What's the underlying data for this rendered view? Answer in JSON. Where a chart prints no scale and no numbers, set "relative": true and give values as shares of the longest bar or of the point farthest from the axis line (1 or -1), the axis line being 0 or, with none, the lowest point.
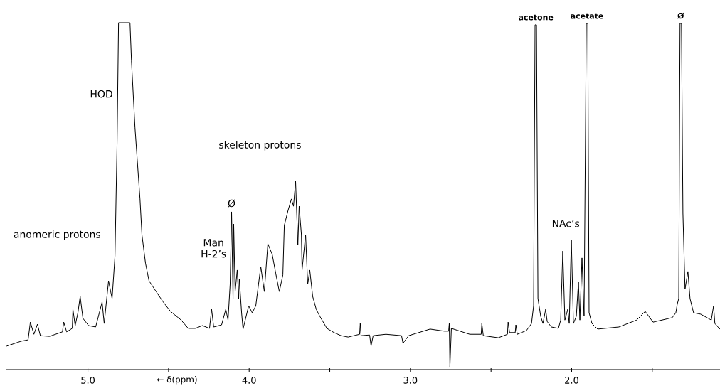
{
  "chart_data": {
    "type": "line",
    "relative": true,
    "xlabel": "← δ(ppm)",
    "xlim": [
      5.51,
      1.08
    ],
    "xticks": [
      {
        "value": 5.0,
        "label": "5.0"
      },
      {
        "value": 4.5,
        "label": null
      },
      {
        "value": 4.0,
        "label": "4.0"
      },
      {
        "value": 3.5,
        "label": null
      },
      {
        "value": 3.0,
        "label": "3.0"
      },
      {
        "value": 2.5,
        "label": null
      },
      {
        "value": 2.0,
        "label": "2.0"
      },
      {
        "value": 1.5,
        "label": null
      }
    ],
    "annotations": [
      "HOD",
      "anomeric protons",
      "skeleton protons",
      {
        "text": "Ø",
        "x": 4.109,
        "y": 0.455
      },
      "Man H-2’s",
      {
        "text": "acetone",
        "x": 2.222,
        "y": 0.994
      },
      {
        "text": "acetate",
        "x": 1.905,
        "y": 0.998
      },
      "NAc’s",
      {
        "text": "Ø",
        "x": 1.324,
        "y": 0.998
      }
    ],
    "series": [
      {
        "color": "#000000",
        "x": [
          5.503,
          5.415,
          5.371,
          5.357,
          5.335,
          5.313,
          5.295,
          5.238,
          5.158,
          5.15,
          5.132,
          5.097,
          5.093,
          5.079,
          5.062,
          5.048,
          5.031,
          4.996,
          4.952,
          4.912,
          4.899,
          4.872,
          4.85,
          4.832,
          4.819,
          4.81,
          4.739,
          4.73,
          4.708,
          4.677,
          4.665,
          4.643,
          4.621,
          4.577,
          4.533,
          4.488,
          4.422,
          4.378,
          4.334,
          4.29,
          4.246,
          4.233,
          4.22,
          4.171,
          4.145,
          4.131,
          4.118,
          4.109,
          4.1,
          4.096,
          4.087,
          4.074,
          4.065,
          4.061,
          4.047,
          4.038,
          4.003,
          3.981,
          3.959,
          3.928,
          3.906,
          3.884,
          3.857,
          3.835,
          3.813,
          3.791,
          3.782,
          3.76,
          3.738,
          3.725,
          3.712,
          3.698,
          3.69,
          3.676,
          3.672,
          3.65,
          3.637,
          3.624,
          3.606,
          3.584,
          3.562,
          3.518,
          3.474,
          3.43,
          3.386,
          3.315,
          3.311,
          3.306,
          3.253,
          3.244,
          3.231,
          3.152,
          3.055,
          3.046,
          3.011,
          2.878,
          2.79,
          2.763,
          2.759,
          2.755,
          2.746,
          2.632,
          2.561,
          2.557,
          2.548,
          2.455,
          2.398,
          2.394,
          2.385,
          2.35,
          2.346,
          2.337,
          2.28,
          2.249,
          2.236,
          2.227,
          2.218,
          2.209,
          2.192,
          2.178,
          2.161,
          2.152,
          2.126,
          2.082,
          2.068,
          2.055,
          2.042,
          2.024,
          2.015,
          2.002,
          1.989,
          1.971,
          1.958,
          1.949,
          1.936,
          1.923,
          1.909,
          1.9,
          1.892,
          1.874,
          1.839,
          1.707,
          1.597,
          1.544,
          1.522,
          1.495,
          1.376,
          1.354,
          1.345,
          1.336,
          1.328,
          1.319,
          1.31,
          1.297,
          1.279,
          1.266,
          1.244,
          1.2,
          1.134,
          1.12,
          1.112,
          1.081
        ],
        "values": [
          0.068,
          0.082,
          0.086,
          0.137,
          0.102,
          0.131,
          0.098,
          0.096,
          0.109,
          0.137,
          0.109,
          0.119,
          0.174,
          0.127,
          0.164,
          0.211,
          0.148,
          0.127,
          0.123,
          0.195,
          0.133,
          0.256,
          0.205,
          0.328,
          0.656,
          1.0,
          1.0,
          0.891,
          0.697,
          0.492,
          0.389,
          0.307,
          0.256,
          0.225,
          0.195,
          0.168,
          0.143,
          0.119,
          0.119,
          0.127,
          0.119,
          0.174,
          0.123,
          0.129,
          0.174,
          0.143,
          0.246,
          0.455,
          0.205,
          0.42,
          0.225,
          0.287,
          0.205,
          0.262,
          0.164,
          0.117,
          0.184,
          0.164,
          0.184,
          0.297,
          0.225,
          0.363,
          0.332,
          0.277,
          0.225,
          0.273,
          0.416,
          0.457,
          0.492,
          0.471,
          0.543,
          0.359,
          0.471,
          0.389,
          0.287,
          0.389,
          0.246,
          0.287,
          0.211,
          0.174,
          0.154,
          0.119,
          0.107,
          0.098,
          0.094,
          0.102,
          0.133,
          0.098,
          0.1,
          0.068,
          0.098,
          0.102,
          0.098,
          0.076,
          0.098,
          0.117,
          0.111,
          0.111,
          0.133,
          0.008,
          0.119,
          0.102,
          0.102,
          0.133,
          0.098,
          0.092,
          0.102,
          0.137,
          0.107,
          0.107,
          0.129,
          0.102,
          0.113,
          0.133,
          0.184,
          0.994,
          0.994,
          0.205,
          0.154,
          0.133,
          0.174,
          0.139,
          0.123,
          0.119,
          0.143,
          0.342,
          0.143,
          0.174,
          0.133,
          0.375,
          0.133,
          0.154,
          0.252,
          0.143,
          0.322,
          0.154,
          0.998,
          0.998,
          0.164,
          0.133,
          0.117,
          0.123,
          0.143,
          0.168,
          0.154,
          0.137,
          0.15,
          0.164,
          0.189,
          0.205,
          0.998,
          0.998,
          0.451,
          0.232,
          0.283,
          0.205,
          0.164,
          0.16,
          0.143,
          0.184,
          0.133,
          0.117
        ]
      }
    ]
  }
}
